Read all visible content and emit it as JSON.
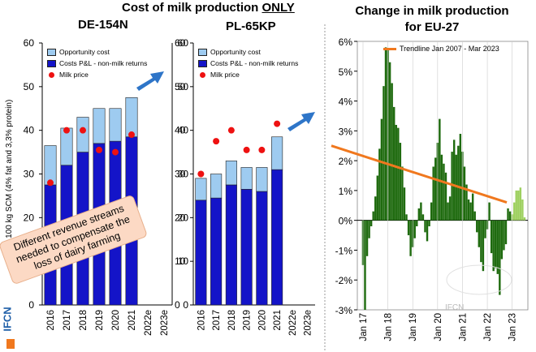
{
  "header": {
    "title_main": "Cost of milk production",
    "title_emph": "ONLY",
    "subtitle_left": "DE-154N",
    "subtitle_mid": "PL-65KP",
    "title_right_l1": "Change in milk production",
    "title_right_l2": "for EU-27"
  },
  "branding": {
    "side_logo": "IFCN",
    "watermark": "IFCN"
  },
  "callout": {
    "text": "Different revenue streams needed to compensate the loss of dairy farming"
  },
  "colors": {
    "opportunity": "#9ecbf0",
    "costs": "#1414c8",
    "milk_price": "#ee1111",
    "pos": "#1f6b0f",
    "neg": "#1f6b0f",
    "forecast": "#9ed060",
    "trend": "#f0781e",
    "arrow": "#2e75c8"
  },
  "chart_data": [
    {
      "type": "bar",
      "title": "DE-154N",
      "ylabel": "r 100 kg SCM (4% fat and 3,3% protein)",
      "ylim": [
        0,
        60
      ],
      "yticks": [
        0,
        10,
        20,
        30,
        40,
        50,
        60
      ],
      "categories": [
        "2016",
        "2017",
        "2018",
        "2019",
        "2020",
        "2021",
        "2022e",
        "2023e"
      ],
      "legend": [
        "Opportunity cost",
        "Costs P&L - non-milk returns",
        "Milk price"
      ],
      "series": [
        {
          "name": "Costs P&L - non-milk returns",
          "values": [
            27.5,
            32,
            35,
            37,
            37.5,
            38.5,
            null,
            null
          ]
        },
        {
          "name": "Opportunity cost",
          "values": [
            9,
            8.5,
            8,
            8,
            7.5,
            9,
            null,
            null
          ]
        },
        {
          "name": "Milk price",
          "values": [
            28,
            40,
            40,
            35.5,
            35,
            39,
            null,
            null
          ]
        }
      ]
    },
    {
      "type": "bar",
      "title": "PL-65KP",
      "ylim": [
        0,
        60
      ],
      "yticks": [
        0,
        10,
        20,
        30,
        40,
        50,
        60
      ],
      "categories": [
        "2016",
        "2017",
        "2018",
        "2019",
        "2020",
        "2021",
        "2022e",
        "2023e"
      ],
      "legend": [
        "Opportunity cost",
        "Costs P&L - non-milk returns",
        "Milk price"
      ],
      "series": [
        {
          "name": "Costs P&L - non-milk returns",
          "values": [
            24,
            24.5,
            27.5,
            26.5,
            26,
            31,
            null,
            null
          ]
        },
        {
          "name": "Opportunity cost",
          "values": [
            5,
            5.5,
            5.5,
            5,
            5.5,
            7.5,
            null,
            null
          ]
        },
        {
          "name": "Milk price",
          "values": [
            30,
            37.5,
            40,
            35.5,
            35.5,
            41.5,
            null,
            null
          ]
        }
      ]
    },
    {
      "type": "bar",
      "title": "Change in milk production for EU-27",
      "ylim": [
        -3,
        6
      ],
      "yticks": [
        "-3%",
        "-2%",
        "-1%",
        "0%",
        "1%",
        "2%",
        "3%",
        "4%",
        "5%",
        "6%"
      ],
      "xticks": [
        "Jan 17",
        "Jan 18",
        "Jan 19",
        "Jan 20",
        "Jan 21",
        "Jan 22",
        "Jan 23"
      ],
      "legend": [
        "Trendline Jan 2007 - Mar 2023"
      ],
      "monthly_values": [
        -1.5,
        -3.0,
        -1.2,
        -0.6,
        -0.2,
        0.3,
        0.8,
        1.5,
        2.4,
        3.4,
        4.5,
        5.8,
        5.7,
        5.3,
        4.6,
        3.8,
        3.2,
        3.1,
        2.6,
        1.8,
        1.1,
        0.2,
        -0.5,
        -1.2,
        -0.9,
        -0.6,
        -0.2,
        0.4,
        0.6,
        0.2,
        -0.4,
        -0.7,
        -0.2,
        0.6,
        1.8,
        2.1,
        2.6,
        3.4,
        2.2,
        1.9,
        1.6,
        0.6,
        0.8,
        2.3,
        2.7,
        2.2,
        2.5,
        2.9,
        2.3,
        1.8,
        1.2,
        0.7,
        0.6,
        0.9,
        0.3,
        -0.4,
        -0.9,
        -1.4,
        -1.7,
        -0.6,
        -0.3,
        0.6,
        -1.1,
        -1.7,
        -1.6,
        -1.8,
        -2.5,
        -1.3,
        -1.0,
        -0.8,
        0.4,
        0.3,
        0.2,
        0.6,
        1.0,
        1.0,
        1.1,
        0.7,
        0.1
      ],
      "forecast_from_index": 72,
      "trendline": {
        "start": 2.5,
        "end": 0.6
      }
    }
  ]
}
